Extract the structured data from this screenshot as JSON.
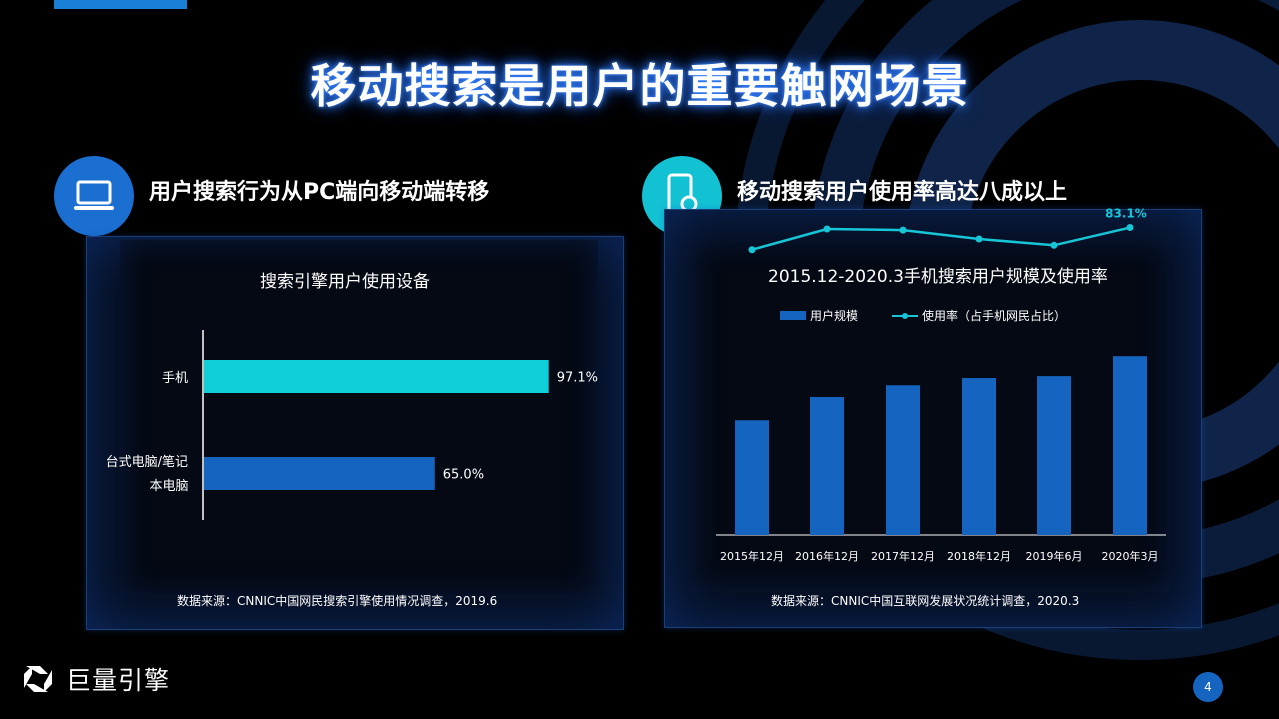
{
  "page_title": "移动搜索是用户的重要触网场景",
  "left_section": {
    "title": "用户搜索行为从PC端向移动端转移",
    "icon": "laptop-icon",
    "source": "数据来源：CNNIC中国网民搜索引擎使用情况调查，2019.6"
  },
  "right_section": {
    "title": "移动搜索用户使用率高达八成以上",
    "icon": "phone-search-icon",
    "source": "数据来源：CNNIC中国互联网发展状况统计调查，2020.3"
  },
  "brand": {
    "name": "巨量引擎",
    "icon": "brand-logo-icon"
  },
  "page_number": "4",
  "colors": {
    "background": "#000000",
    "accent_blue": "#1a7fd6",
    "bar_cyan": "#10cfd8",
    "bar_blue": "#1565c0",
    "line_cyan": "#16c6d6"
  },
  "chart_data": [
    {
      "type": "bar",
      "orientation": "horizontal",
      "title": "搜索引擎用户使用设备",
      "categories": [
        "手机",
        "台式电脑/笔记本电脑"
      ],
      "category_lines": [
        [
          "手机"
        ],
        [
          "台式电脑/笔记",
          "本电脑"
        ]
      ],
      "values": [
        97.1,
        65.0
      ],
      "value_labels": [
        "97.1%",
        "65.0%"
      ],
      "bar_colors": [
        "#10cfd8",
        "#1565c0"
      ],
      "xlim": [
        0,
        100
      ],
      "grid": false,
      "legend": "none"
    },
    {
      "type": "bar+line",
      "title": "2015.12-2020.3手机搜索用户规模及使用率",
      "categories": [
        "2015年12月",
        "2016年12月",
        "2017年12月",
        "2018年12月",
        "2019年6月",
        "2020年3月"
      ],
      "series": [
        {
          "name": "用户规模",
          "type": "bar",
          "color": "#1565c0",
          "values": [
            4.78,
            5.75,
            6.24,
            6.54,
            6.62,
            7.45
          ]
        },
        {
          "name": "使用率（占手机网民占比）",
          "type": "line",
          "color": "#16c6d6",
          "values": [
            77.1,
            82.7,
            82.4,
            80.0,
            78.3,
            83.1
          ]
        }
      ],
      "annotations": [
        {
          "series": "使用率（占手机网民占比）",
          "category": "2020年3月",
          "text": "83.1%"
        }
      ],
      "ylim_bar": [
        0,
        10
      ],
      "ylim_line": [
        0,
        100
      ],
      "grid": false,
      "legend": "top-center"
    }
  ]
}
